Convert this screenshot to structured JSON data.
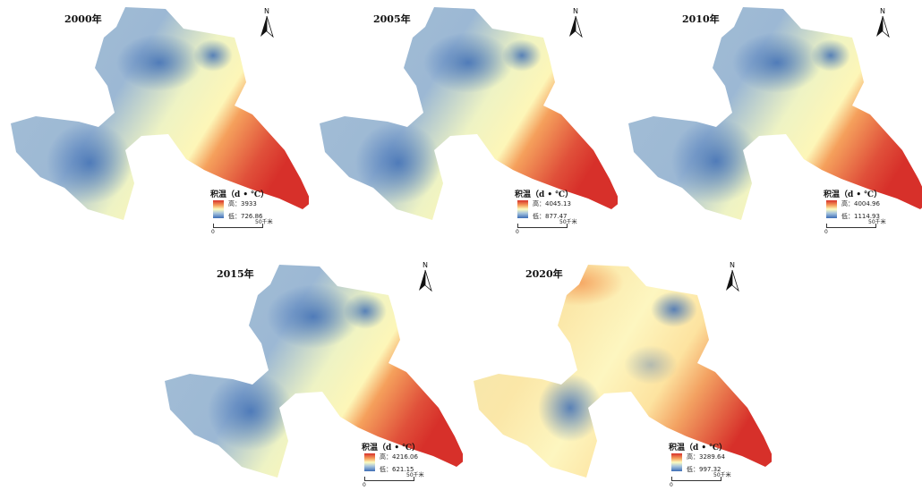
{
  "north_label": "N",
  "legend_title": "积温（d • ℃）",
  "scale_zero": "0",
  "scale_distance": "50千米",
  "panels": [
    {
      "year": "2000年",
      "high": "高：3933",
      "low": "低：726.86"
    },
    {
      "year": "2005年",
      "high": "高：4045.13",
      "low": "低：877.47"
    },
    {
      "year": "2010年",
      "high": "高：4004.96",
      "low": "低：1114.93"
    },
    {
      "year": "2015年",
      "high": "高：4216.06",
      "low": "低：621.15"
    },
    {
      "year": "2020年",
      "high": "高：3289.64",
      "low": "低：997.32"
    }
  ],
  "colors": {
    "high": "#d7302a",
    "mid": "#fdfcc0",
    "low": "#3d6db5"
  }
}
